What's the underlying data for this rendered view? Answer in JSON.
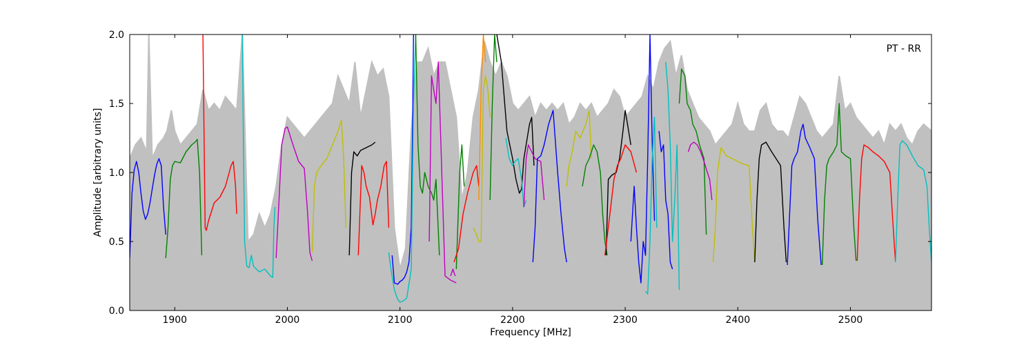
{
  "chart_data": {
    "type": "line",
    "title": "",
    "annotation": "PT - RR",
    "xlabel": "Frequency [MHz]",
    "ylabel": "Amplitude [arbitrary units]",
    "xlim": [
      1860,
      2572
    ],
    "ylim": [
      0.0,
      2.0
    ],
    "xticks": [
      1900,
      2000,
      2100,
      2200,
      2300,
      2400,
      2500
    ],
    "yticks": [
      0.0,
      0.5,
      1.0,
      1.5,
      2.0
    ],
    "xtick_labels": [
      "1900",
      "2000",
      "2100",
      "2200",
      "2300",
      "2400",
      "2500"
    ],
    "ytick_labels": [
      "0.0",
      "0.5",
      "1.0",
      "1.5",
      "2.0"
    ],
    "grid": false,
    "envelope": {
      "color": "#c0c0c0",
      "x": [
        1860,
        1865,
        1870,
        1875,
        1877,
        1880,
        1885,
        1890,
        1893,
        1897,
        1900,
        1905,
        1910,
        1915,
        1920,
        1925,
        1930,
        1935,
        1940,
        1945,
        1950,
        1955,
        1960,
        1965,
        1970,
        1975,
        1980,
        1985,
        1990,
        1995,
        2000,
        2005,
        2010,
        2015,
        2020,
        2025,
        2030,
        2035,
        2040,
        2045,
        2050,
        2055,
        2060,
        2065,
        2070,
        2075,
        2080,
        2085,
        2090,
        2095,
        2100,
        2105,
        2110,
        2115,
        2120,
        2125,
        2130,
        2135,
        2140,
        2145,
        2150,
        2155,
        2160,
        2165,
        2170,
        2175,
        2180,
        2185,
        2190,
        2195,
        2200,
        2205,
        2210,
        2215,
        2220,
        2225,
        2230,
        2235,
        2240,
        2245,
        2250,
        2255,
        2260,
        2265,
        2270,
        2275,
        2280,
        2285,
        2290,
        2295,
        2300,
        2305,
        2310,
        2315,
        2320,
        2325,
        2330,
        2335,
        2340,
        2345,
        2350,
        2355,
        2360,
        2365,
        2370,
        2375,
        2380,
        2385,
        2390,
        2395,
        2400,
        2405,
        2410,
        2415,
        2420,
        2425,
        2430,
        2435,
        2440,
        2445,
        2450,
        2455,
        2460,
        2465,
        2470,
        2475,
        2480,
        2485,
        2490,
        2495,
        2500,
        2505,
        2510,
        2515,
        2520,
        2525,
        2530,
        2535,
        2540,
        2545,
        2550,
        2555,
        2560,
        2565,
        2572
      ],
      "y": [
        1.1,
        1.2,
        1.25,
        1.15,
        2.0,
        1.1,
        1.2,
        1.25,
        1.3,
        1.45,
        1.3,
        1.2,
        1.25,
        1.3,
        1.35,
        1.6,
        1.45,
        1.5,
        1.45,
        1.55,
        1.5,
        1.45,
        2.0,
        0.5,
        0.55,
        0.7,
        0.6,
        0.7,
        0.9,
        1.2,
        1.4,
        1.35,
        1.3,
        1.25,
        1.3,
        1.35,
        1.4,
        1.45,
        1.5,
        1.7,
        1.6,
        1.5,
        1.8,
        1.4,
        1.6,
        1.8,
        1.7,
        1.75,
        1.55,
        0.6,
        0.3,
        0.45,
        1.3,
        1.8,
        1.8,
        1.9,
        1.7,
        1.8,
        1.8,
        1.6,
        1.4,
        0.8,
        1.0,
        1.4,
        1.6,
        1.95,
        1.8,
        1.7,
        1.8,
        1.7,
        1.5,
        1.45,
        1.5,
        1.55,
        1.4,
        1.5,
        1.45,
        1.5,
        1.45,
        1.5,
        1.35,
        1.4,
        1.5,
        1.45,
        1.5,
        1.4,
        1.45,
        1.5,
        1.6,
        1.55,
        1.4,
        1.45,
        1.5,
        1.55,
        1.7,
        1.6,
        1.8,
        1.9,
        1.95,
        1.7,
        1.85,
        1.6,
        1.5,
        1.4,
        1.35,
        1.3,
        1.2,
        1.25,
        1.3,
        1.35,
        1.5,
        1.35,
        1.3,
        1.3,
        1.45,
        1.5,
        1.35,
        1.3,
        1.3,
        1.25,
        1.4,
        1.55,
        1.5,
        1.4,
        1.3,
        1.25,
        1.3,
        1.35,
        1.7,
        1.45,
        1.5,
        1.4,
        1.35,
        1.3,
        1.25,
        1.3,
        1.2,
        1.35,
        1.3,
        1.35,
        1.25,
        1.2,
        1.3,
        1.35,
        1.3
      ]
    },
    "series": [
      {
        "color": "#0000ff",
        "x": [
          1860,
          1862,
          1864,
          1866,
          1868,
          1870,
          1872,
          1874,
          1876,
          1878,
          1880,
          1882,
          1884,
          1886,
          1888,
          1890,
          1892
        ],
        "y": [
          0.38,
          0.85,
          1.02,
          1.08,
          1.0,
          0.85,
          0.72,
          0.66,
          0.7,
          0.78,
          0.88,
          0.98,
          1.06,
          1.1,
          1.05,
          0.75,
          0.55
        ]
      },
      {
        "color": "#008000",
        "x": [
          1892,
          1894,
          1896,
          1898,
          1900,
          1905,
          1910,
          1915,
          1918,
          1920,
          1922,
          1924
        ],
        "y": [
          0.38,
          0.6,
          0.95,
          1.05,
          1.08,
          1.07,
          1.15,
          1.2,
          1.22,
          1.24,
          1.0,
          0.4
        ]
      },
      {
        "color": "#ff0000",
        "x": [
          1925,
          1926,
          1927,
          1928,
          1930,
          1935,
          1940,
          1945,
          1950,
          1952,
          1954,
          1955
        ],
        "y": [
          2.0,
          1.3,
          0.6,
          0.58,
          0.65,
          0.78,
          0.82,
          0.9,
          1.05,
          1.08,
          0.9,
          0.7
        ]
      },
      {
        "color": "#00bfbf",
        "x": [
          1960,
          1961,
          1962,
          1964,
          1966,
          1968,
          1970,
          1975,
          1980,
          1985,
          1987,
          1988,
          1989
        ],
        "y": [
          2.0,
          1.2,
          0.5,
          0.32,
          0.31,
          0.4,
          0.32,
          0.28,
          0.3,
          0.25,
          0.24,
          0.6,
          0.75
        ]
      },
      {
        "color": "#bf00bf",
        "x": [
          1990,
          1992,
          1995,
          1998,
          2000,
          2005,
          2010,
          2015,
          2018,
          2020,
          2022
        ],
        "y": [
          0.38,
          0.7,
          1.2,
          1.32,
          1.33,
          1.2,
          1.08,
          1.03,
          0.7,
          0.42,
          0.36
        ]
      },
      {
        "color": "#bfbf00",
        "x": [
          2022,
          2024,
          2026,
          2030,
          2035,
          2040,
          2045,
          2048,
          2050,
          2052
        ],
        "y": [
          0.42,
          0.9,
          1.0,
          1.05,
          1.1,
          1.2,
          1.3,
          1.38,
          1.1,
          0.6
        ]
      },
      {
        "color": "#000000",
        "x": [
          2055,
          2057,
          2059,
          2062,
          2065,
          2070,
          2075,
          2078
        ],
        "y": [
          0.4,
          1.0,
          1.15,
          1.12,
          1.16,
          1.18,
          1.2,
          1.22
        ]
      },
      {
        "color": "#ff0000",
        "x": [
          2063,
          2066,
          2068,
          2070,
          2073,
          2076,
          2078,
          2080,
          2083,
          2086,
          2088,
          2090
        ],
        "y": [
          0.4,
          1.05,
          1.0,
          0.9,
          0.82,
          0.62,
          0.7,
          0.8,
          0.9,
          1.05,
          1.08,
          0.6
        ]
      },
      {
        "color": "#0000ff",
        "x": [
          2093,
          2095,
          2098,
          2100,
          2102,
          2104,
          2106,
          2108,
          2110,
          2111,
          2112
        ],
        "y": [
          0.4,
          0.2,
          0.19,
          0.21,
          0.22,
          0.24,
          0.28,
          0.35,
          0.6,
          1.2,
          2.0
        ]
      },
      {
        "color": "#00bfbf",
        "x": [
          2090,
          2092,
          2095,
          2098,
          2100,
          2103,
          2106,
          2110,
          2112,
          2114
        ],
        "y": [
          0.42,
          0.3,
          0.15,
          0.08,
          0.06,
          0.07,
          0.09,
          0.3,
          1.5,
          2.0
        ]
      },
      {
        "color": "#008000",
        "x": [
          2114,
          2116,
          2118,
          2120,
          2122,
          2125,
          2128,
          2130,
          2132,
          2135
        ],
        "y": [
          2.0,
          1.2,
          0.9,
          0.85,
          1.0,
          0.9,
          0.85,
          0.8,
          0.95,
          0.4
        ]
      },
      {
        "color": "#bf00bf",
        "x": [
          2126,
          2128,
          2130,
          2132,
          2134,
          2136,
          2140,
          2145,
          2150
        ],
        "y": [
          0.5,
          1.7,
          1.6,
          1.5,
          1.8,
          1.3,
          0.25,
          0.22,
          0.2
        ]
      },
      {
        "color": "#bf00bf",
        "x": [
          2145,
          2147,
          2149
        ],
        "y": [
          0.25,
          0.3,
          0.25
        ]
      },
      {
        "color": "#008000",
        "x": [
          2150,
          2153,
          2155,
          2157
        ],
        "y": [
          0.3,
          1.0,
          1.2,
          0.9
        ]
      },
      {
        "color": "#ff0000",
        "x": [
          2148,
          2152,
          2156,
          2160,
          2165,
          2168,
          2170
        ],
        "y": [
          0.35,
          0.45,
          0.7,
          0.85,
          1.0,
          1.05,
          0.9
        ]
      },
      {
        "color": "#bfbf00",
        "x": [
          2165,
          2168,
          2170,
          2172,
          2174,
          2176,
          2178,
          2180
        ],
        "y": [
          0.6,
          0.55,
          0.5,
          0.5,
          1.6,
          1.7,
          1.6,
          1.4
        ]
      },
      {
        "color": "#ff8c00",
        "x": [
          2170,
          2172,
          2174,
          2176
        ],
        "y": [
          0.8,
          1.6,
          2.0,
          1.8
        ]
      },
      {
        "color": "#008000",
        "x": [
          2180,
          2182,
          2184,
          2186
        ],
        "y": [
          0.8,
          1.5,
          2.0,
          1.8
        ]
      },
      {
        "color": "#000000",
        "x": [
          2186,
          2190,
          2195,
          2200,
          2203,
          2206,
          2208,
          2210,
          2213,
          2215,
          2217,
          2219
        ],
        "y": [
          2.0,
          1.8,
          1.3,
          1.1,
          0.95,
          0.85,
          0.88,
          1.1,
          1.25,
          1.35,
          1.4,
          1.05
        ]
      },
      {
        "color": "#00bfbf",
        "x": [
          2194,
          2197,
          2200,
          2202,
          2205,
          2208,
          2210,
          2212
        ],
        "y": [
          1.25,
          1.1,
          1.05,
          1.08,
          1.1,
          0.95,
          0.75,
          0.8
        ]
      },
      {
        "color": "#bf00bf",
        "x": [
          2210,
          2212,
          2214,
          2217,
          2220,
          2225,
          2228
        ],
        "y": [
          0.75,
          1.1,
          1.2,
          1.15,
          1.1,
          1.08,
          0.8
        ]
      },
      {
        "color": "#0000ff",
        "x": [
          2218,
          2220,
          2222,
          2225,
          2228,
          2232,
          2236,
          2240,
          2243,
          2246,
          2248
        ],
        "y": [
          0.35,
          0.6,
          1.1,
          1.12,
          1.2,
          1.35,
          1.45,
          1.0,
          0.7,
          0.45,
          0.35
        ]
      },
      {
        "color": "#bfbf00",
        "x": [
          2248,
          2250,
          2253,
          2256,
          2260,
          2265,
          2268,
          2270
        ],
        "y": [
          0.9,
          1.05,
          1.15,
          1.3,
          1.25,
          1.35,
          1.45,
          1.1
        ]
      },
      {
        "color": "#008000",
        "x": [
          2262,
          2265,
          2268,
          2272,
          2275,
          2278,
          2280,
          2282,
          2284
        ],
        "y": [
          0.9,
          1.05,
          1.1,
          1.2,
          1.15,
          1.0,
          0.7,
          0.5,
          0.4
        ]
      },
      {
        "color": "#000000",
        "x": [
          2283,
          2285,
          2288,
          2292,
          2295,
          2298,
          2300,
          2302,
          2305
        ],
        "y": [
          0.4,
          0.95,
          0.98,
          1.0,
          1.1,
          1.3,
          1.45,
          1.35,
          1.2
        ]
      },
      {
        "color": "#ff0000",
        "x": [
          2282,
          2285,
          2290,
          2293,
          2296,
          2300,
          2305,
          2310
        ],
        "y": [
          0.4,
          0.6,
          0.95,
          1.05,
          1.1,
          1.2,
          1.15,
          1.0
        ]
      },
      {
        "color": "#0000ff",
        "x": [
          2305,
          2308,
          2310,
          2312,
          2314,
          2316,
          2318,
          2320,
          2322,
          2324,
          2326
        ],
        "y": [
          0.5,
          0.9,
          0.6,
          0.35,
          0.2,
          0.5,
          0.4,
          1.1,
          2.0,
          1.2,
          0.65
        ]
      },
      {
        "color": "#00bfbf",
        "x": [
          2318,
          2320,
          2322,
          2324,
          2326,
          2328
        ],
        "y": [
          0.14,
          0.12,
          0.5,
          1.1,
          1.4,
          0.6
        ]
      },
      {
        "color": "#0000ff",
        "x": [
          2330,
          2332,
          2334,
          2336,
          2338,
          2340,
          2342
        ],
        "y": [
          1.3,
          1.15,
          1.2,
          0.8,
          0.7,
          0.35,
          0.3
        ]
      },
      {
        "color": "#00bfbf",
        "x": [
          2336,
          2338,
          2340,
          2342,
          2344,
          2346,
          2348
        ],
        "y": [
          1.8,
          1.6,
          1.2,
          0.5,
          0.8,
          1.2,
          0.15
        ]
      },
      {
        "color": "#008000",
        "x": [
          2348,
          2350,
          2353,
          2355,
          2358,
          2360,
          2363,
          2366,
          2370,
          2372
        ],
        "y": [
          1.5,
          1.75,
          1.7,
          1.5,
          1.45,
          1.35,
          1.3,
          1.2,
          1.1,
          0.55
        ]
      },
      {
        "color": "#bf00bf",
        "x": [
          2356,
          2358,
          2361,
          2364,
          2367,
          2370,
          2373,
          2375,
          2377
        ],
        "y": [
          1.15,
          1.2,
          1.22,
          1.2,
          1.15,
          1.08,
          1.0,
          0.95,
          0.8
        ]
      },
      {
        "color": "#bfbf00",
        "x": [
          2378,
          2380,
          2382,
          2385,
          2390,
          2395,
          2400,
          2405,
          2410,
          2413,
          2415
        ],
        "y": [
          0.35,
          0.6,
          1.0,
          1.18,
          1.12,
          1.1,
          1.08,
          1.06,
          1.05,
          0.6,
          0.35
        ]
      },
      {
        "color": "#000000",
        "x": [
          2415,
          2417,
          2419,
          2421,
          2425,
          2430,
          2434,
          2438,
          2441,
          2443
        ],
        "y": [
          0.35,
          0.8,
          1.1,
          1.2,
          1.22,
          1.15,
          1.1,
          1.05,
          0.6,
          0.35
        ]
      },
      {
        "color": "#0000ff",
        "x": [
          2444,
          2446,
          2448,
          2450,
          2453,
          2456,
          2458,
          2460,
          2464,
          2468,
          2471,
          2474
        ],
        "y": [
          0.33,
          0.7,
          1.05,
          1.1,
          1.15,
          1.3,
          1.35,
          1.25,
          1.18,
          1.1,
          0.65,
          0.33
        ]
      },
      {
        "color": "#008000",
        "x": [
          2475,
          2477,
          2479,
          2481,
          2485,
          2488,
          2490,
          2492,
          2496,
          2500,
          2503,
          2505
        ],
        "y": [
          0.33,
          0.8,
          1.05,
          1.1,
          1.15,
          1.2,
          1.5,
          1.15,
          1.12,
          1.1,
          0.6,
          0.36
        ]
      },
      {
        "color": "#ff0000",
        "x": [
          2506,
          2508,
          2510,
          2512,
          2516,
          2520,
          2525,
          2530,
          2535,
          2538,
          2540
        ],
        "y": [
          0.36,
          0.8,
          1.1,
          1.2,
          1.18,
          1.15,
          1.12,
          1.08,
          1.0,
          0.6,
          0.35
        ]
      },
      {
        "color": "#00bfbf",
        "x": [
          2540,
          2542,
          2544,
          2546,
          2550,
          2555,
          2560,
          2565,
          2568,
          2570,
          2572
        ],
        "y": [
          0.35,
          0.8,
          1.2,
          1.23,
          1.2,
          1.12,
          1.05,
          1.02,
          0.9,
          0.6,
          0.35
        ]
      }
    ]
  }
}
